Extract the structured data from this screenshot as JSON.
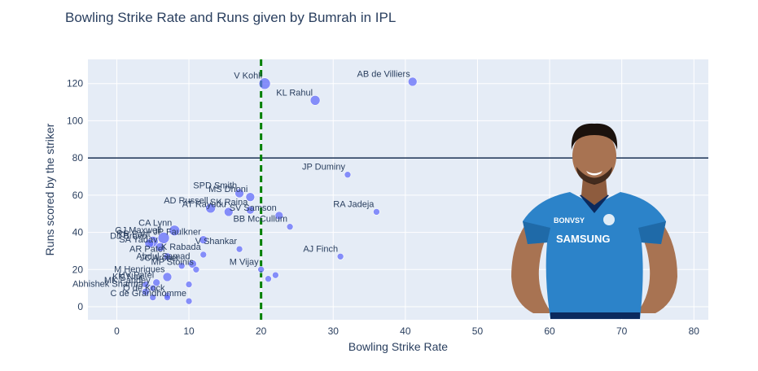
{
  "chart_data": {
    "type": "scatter",
    "title": "Bowling Strike Rate and Runs given by Bumrah in IPL",
    "xlabel": "Bowling Strike Rate",
    "ylabel": "Runs scored by the striker",
    "xlim": [
      -4,
      82
    ],
    "ylim": [
      -7,
      133
    ],
    "xticks": [
      0,
      10,
      20,
      30,
      40,
      50,
      60,
      70,
      80
    ],
    "yticks": [
      0,
      20,
      40,
      60,
      80,
      100,
      120
    ],
    "grid": true,
    "vline": {
      "x": 20,
      "style": "dashed",
      "color": "#008000"
    },
    "hline": {
      "y": 80,
      "color": "#2a3f5f"
    },
    "marker_color": "#636efa",
    "plot_background": "#e5ecf6",
    "points": [
      {
        "label": "V Kohli",
        "x": 20.5,
        "y": 120,
        "size": 12
      },
      {
        "label": "KL Rahul",
        "x": 27.5,
        "y": 111,
        "size": 10
      },
      {
        "label": "AB de Villiers",
        "x": 41,
        "y": 121,
        "size": 9
      },
      {
        "label": "JP Duminy",
        "x": 32,
        "y": 71,
        "size": 6
      },
      {
        "label": "RA Jadeja",
        "x": 36,
        "y": 51,
        "size": 6
      },
      {
        "label": "AJ Finch",
        "x": 31,
        "y": 27,
        "size": 6
      },
      {
        "label": "SPD Smith",
        "x": 17,
        "y": 61,
        "size": 9
      },
      {
        "label": "MS Dhoni",
        "x": 18.5,
        "y": 59,
        "size": 9
      },
      {
        "label": "AD Russell",
        "x": 13,
        "y": 53,
        "size": 10
      },
      {
        "label": "AT Rayudu",
        "x": 15.5,
        "y": 51,
        "size": 9
      },
      {
        "label": "SK Raina",
        "x": 18.5,
        "y": 52,
        "size": 8
      },
      {
        "label": "SV Samson",
        "x": 22.5,
        "y": 49,
        "size": 8
      },
      {
        "label": "BB McCullum",
        "x": 24,
        "y": 43,
        "size": 6
      },
      {
        "label": "GJ Maxwell",
        "x": 6.5,
        "y": 37,
        "size": 12
      },
      {
        "label": "RR Pant",
        "x": 5,
        "y": 35,
        "size": 11
      },
      {
        "label": "DJ Bravo",
        "x": 4.5,
        "y": 34,
        "size": 9
      },
      {
        "label": "CA Lynn",
        "x": 8,
        "y": 41,
        "size": 11
      },
      {
        "label": "JP Faulkner",
        "x": 12,
        "y": 36,
        "size": 8
      },
      {
        "label": "SA Yadav",
        "x": 6,
        "y": 32,
        "size": 9
      },
      {
        "label": "AR Patel",
        "x": 7,
        "y": 27,
        "size": 7
      },
      {
        "label": "Abdul Samad",
        "x": 10.5,
        "y": 23,
        "size": 8
      },
      {
        "label": "JC Archer",
        "x": 9,
        "y": 22,
        "size": 6
      },
      {
        "label": "V Shankar",
        "x": 17,
        "y": 31,
        "size": 6
      },
      {
        "label": "K Rabada",
        "x": 12,
        "y": 28,
        "size": 6
      },
      {
        "label": "M Vijay",
        "x": 20,
        "y": 20,
        "size": 6
      },
      {
        "label": "MP Stoinis",
        "x": 11,
        "y": 20,
        "size": 6
      },
      {
        "label": "M Henriques",
        "x": 7,
        "y": 16,
        "size": 9
      },
      {
        "label": "HV Patel",
        "x": 5.5,
        "y": 13,
        "size": 7
      },
      {
        "label": "KK Nair",
        "x": 4,
        "y": 12,
        "size": 6
      },
      {
        "label": "MK Pandey",
        "x": 5,
        "y": 10,
        "size": 6
      },
      {
        "label": "Abhishek Sharma",
        "x": 4,
        "y": 8,
        "size": 7
      },
      {
        "label": "Q de Kock",
        "x": 7,
        "y": 6,
        "size": 6
      },
      {
        "label": "C de Grandhomme",
        "x": 10,
        "y": 3,
        "size": 6
      },
      {
        "label": "",
        "x": 22,
        "y": 17,
        "size": 6
      },
      {
        "label": "",
        "x": 21,
        "y": 15,
        "size": 6
      },
      {
        "label": "",
        "x": 10,
        "y": 12,
        "size": 6
      },
      {
        "label": "",
        "x": 5,
        "y": 5,
        "size": 6
      },
      {
        "label": "",
        "x": 7,
        "y": 5,
        "size": 6
      }
    ]
  },
  "decorative_photo": {
    "subject": "player-photo",
    "jersey_text": "SAMSUNG",
    "sponsor_text": "BONVSY",
    "jersey_color": "#2c83c9"
  }
}
